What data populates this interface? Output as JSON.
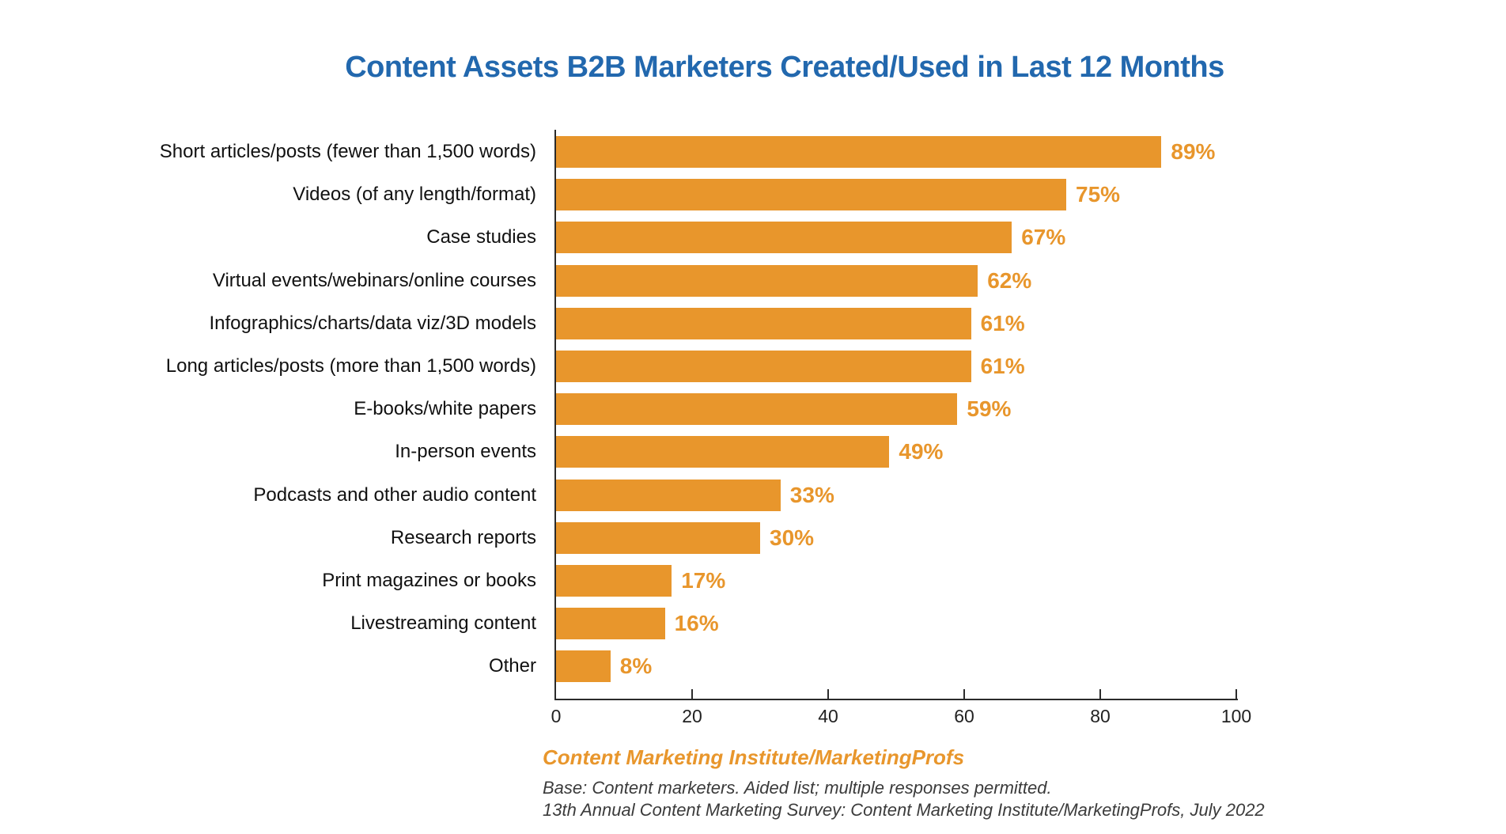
{
  "title": "Content Assets B2B Marketers Created/Used in Last 12 Months",
  "chart_data": {
    "type": "bar",
    "orientation": "horizontal",
    "title": "Content Assets B2B Marketers Created/Used in Last 12 Months",
    "categories": [
      "Short articles/posts (fewer than 1,500 words)",
      "Videos (of any length/format)",
      "Case studies",
      "Virtual events/webinars/online courses",
      "Infographics/charts/data viz/3D models",
      "Long articles/posts (more than 1,500 words)",
      "E-books/white papers",
      "In-person events",
      "Podcasts and other audio content",
      "Research reports",
      "Print magazines or books",
      "Livestreaming content",
      "Other"
    ],
    "values": [
      89,
      75,
      67,
      62,
      61,
      61,
      59,
      49,
      33,
      30,
      17,
      16,
      8
    ],
    "value_labels": [
      "89%",
      "75%",
      "67%",
      "62%",
      "61%",
      "61%",
      "59%",
      "49%",
      "33%",
      "30%",
      "17%",
      "16%",
      "8%"
    ],
    "xlabel": "",
    "ylabel": "",
    "xlim": [
      0,
      100
    ],
    "x_ticks": [
      0,
      20,
      40,
      60,
      80,
      100
    ],
    "grid": false,
    "legend": false,
    "data_labels": true
  },
  "footer": {
    "source": "Content Marketing Institute/MarketingProfs",
    "base_note": "Base: Content marketers. Aided list; multiple responses permitted.",
    "survey_note": "13th Annual Content Marketing Survey: Content Marketing Institute/MarketingProfs, July 2022"
  },
  "colors": {
    "bar": "#E8962C",
    "value_label": "#E8962C",
    "title": "#2268AE",
    "axis": "#2b2b2b",
    "category_text": "#111111",
    "note_text": "#3b3b3b",
    "source_text": "#E8962C",
    "background": "#ffffff"
  }
}
